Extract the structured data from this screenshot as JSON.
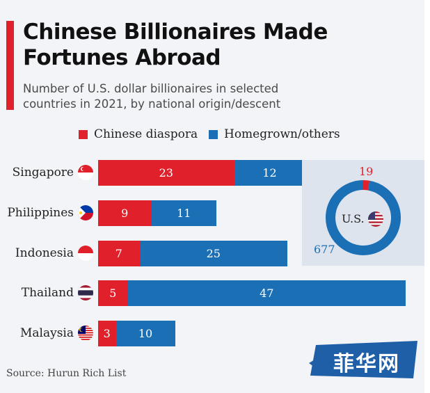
{
  "header": {
    "title": "Chinese Billionaires Made Fortunes Abroad",
    "subtitle": "Number of U.S. dollar billionaires in selected countries in 2021, by national origin/descent"
  },
  "colors": {
    "chinese": "#e0212b",
    "homegrown": "#1a6fb5",
    "accent": "#e0212b"
  },
  "chart_data": {
    "type": "bar",
    "orientation": "horizontal",
    "stacked": true,
    "categories": [
      "Singapore",
      "Philippines",
      "Indonesia",
      "Thailand",
      "Malaysia"
    ],
    "series": [
      {
        "name": "Chinese diaspora",
        "values": [
          23,
          9,
          7,
          5,
          3
        ]
      },
      {
        "name": "Homegrown/others",
        "values": [
          12,
          11,
          25,
          47,
          10
        ]
      }
    ],
    "legend_position": "top",
    "grid": false,
    "inset": {
      "type": "pie",
      "label": "U.S.",
      "values": [
        19,
        677
      ]
    }
  },
  "flags": [
    "singapore-flag-icon",
    "philippines-flag-icon",
    "indonesia-flag-icon",
    "thailand-flag-icon",
    "malaysia-flag-icon",
    "usa-flag-icon"
  ],
  "footer": {
    "source": "Source: Hurun Rich List",
    "watermark": "菲华网"
  }
}
